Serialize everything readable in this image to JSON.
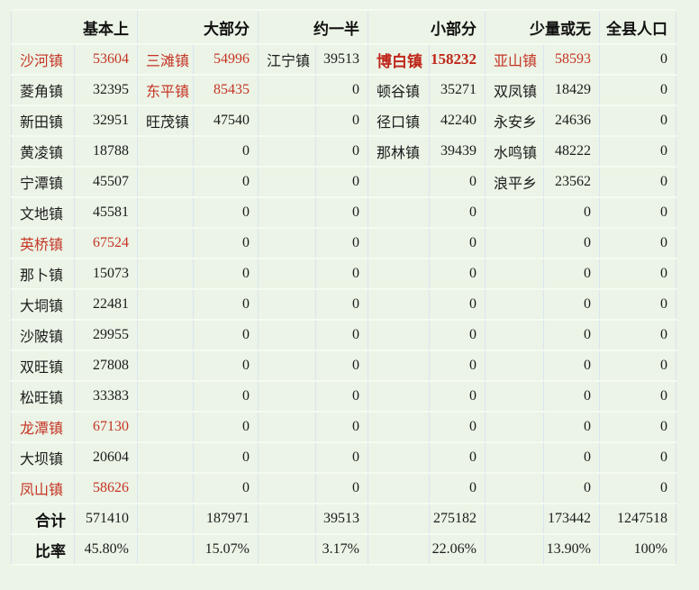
{
  "chart_data": {
    "type": "table",
    "headers": [
      "基本上",
      "大部分",
      "约一半",
      "小部分",
      "少量或无",
      "全县人口"
    ],
    "rows": [
      {
        "cells": [
          {
            "town": "沙河镇",
            "value": "53604",
            "style": "red"
          },
          {
            "town": "三滩镇",
            "value": "54996",
            "style": "red"
          },
          {
            "town": "江宁镇",
            "value": "39513",
            "style": ""
          },
          {
            "town": "博白镇",
            "value": "158232",
            "style": "red-bold"
          },
          {
            "town": "亚山镇",
            "value": "58593",
            "style": "red"
          }
        ],
        "county": "0"
      },
      {
        "cells": [
          {
            "town": "菱角镇",
            "value": "32395",
            "style": ""
          },
          {
            "town": "东平镇",
            "value": "85435",
            "style": "red"
          },
          {
            "town": "",
            "value": "0",
            "style": ""
          },
          {
            "town": "顿谷镇",
            "value": "35271",
            "style": ""
          },
          {
            "town": "双凤镇",
            "value": "18429",
            "style": ""
          }
        ],
        "county": "0"
      },
      {
        "cells": [
          {
            "town": "新田镇",
            "value": "32951",
            "style": ""
          },
          {
            "town": "旺茂镇",
            "value": "47540",
            "style": ""
          },
          {
            "town": "",
            "value": "0",
            "style": ""
          },
          {
            "town": "径口镇",
            "value": "42240",
            "style": ""
          },
          {
            "town": "永安乡",
            "value": "24636",
            "style": ""
          }
        ],
        "county": "0"
      },
      {
        "cells": [
          {
            "town": "黄凌镇",
            "value": "18788",
            "style": ""
          },
          {
            "town": "",
            "value": "0",
            "style": ""
          },
          {
            "town": "",
            "value": "0",
            "style": ""
          },
          {
            "town": "那林镇",
            "value": "39439",
            "style": ""
          },
          {
            "town": "水鸣镇",
            "value": "48222",
            "style": ""
          }
        ],
        "county": "0"
      },
      {
        "cells": [
          {
            "town": "宁潭镇",
            "value": "45507",
            "style": ""
          },
          {
            "town": "",
            "value": "0",
            "style": ""
          },
          {
            "town": "",
            "value": "0",
            "style": ""
          },
          {
            "town": "",
            "value": "0",
            "style": ""
          },
          {
            "town": "浪平乡",
            "value": "23562",
            "style": ""
          }
        ],
        "county": "0"
      },
      {
        "cells": [
          {
            "town": "文地镇",
            "value": "45581",
            "style": ""
          },
          {
            "town": "",
            "value": "0",
            "style": ""
          },
          {
            "town": "",
            "value": "0",
            "style": ""
          },
          {
            "town": "",
            "value": "0",
            "style": ""
          },
          {
            "town": "",
            "value": "0",
            "style": ""
          }
        ],
        "county": "0"
      },
      {
        "cells": [
          {
            "town": "英桥镇",
            "value": "67524",
            "style": "red"
          },
          {
            "town": "",
            "value": "0",
            "style": ""
          },
          {
            "town": "",
            "value": "0",
            "style": ""
          },
          {
            "town": "",
            "value": "0",
            "style": ""
          },
          {
            "town": "",
            "value": "0",
            "style": ""
          }
        ],
        "county": "0"
      },
      {
        "cells": [
          {
            "town": "那卜镇",
            "value": "15073",
            "style": ""
          },
          {
            "town": "",
            "value": "0",
            "style": ""
          },
          {
            "town": "",
            "value": "0",
            "style": ""
          },
          {
            "town": "",
            "value": "0",
            "style": ""
          },
          {
            "town": "",
            "value": "0",
            "style": ""
          }
        ],
        "county": "0"
      },
      {
        "cells": [
          {
            "town": "大垌镇",
            "value": "22481",
            "style": ""
          },
          {
            "town": "",
            "value": "0",
            "style": ""
          },
          {
            "town": "",
            "value": "0",
            "style": ""
          },
          {
            "town": "",
            "value": "0",
            "style": ""
          },
          {
            "town": "",
            "value": "0",
            "style": ""
          }
        ],
        "county": "0"
      },
      {
        "cells": [
          {
            "town": "沙陂镇",
            "value": "29955",
            "style": ""
          },
          {
            "town": "",
            "value": "0",
            "style": ""
          },
          {
            "town": "",
            "value": "0",
            "style": ""
          },
          {
            "town": "",
            "value": "0",
            "style": ""
          },
          {
            "town": "",
            "value": "0",
            "style": ""
          }
        ],
        "county": "0"
      },
      {
        "cells": [
          {
            "town": "双旺镇",
            "value": "27808",
            "style": ""
          },
          {
            "town": "",
            "value": "0",
            "style": ""
          },
          {
            "town": "",
            "value": "0",
            "style": ""
          },
          {
            "town": "",
            "value": "0",
            "style": ""
          },
          {
            "town": "",
            "value": "0",
            "style": ""
          }
        ],
        "county": "0"
      },
      {
        "cells": [
          {
            "town": "松旺镇",
            "value": "33383",
            "style": ""
          },
          {
            "town": "",
            "value": "0",
            "style": ""
          },
          {
            "town": "",
            "value": "0",
            "style": ""
          },
          {
            "town": "",
            "value": "0",
            "style": ""
          },
          {
            "town": "",
            "value": "0",
            "style": ""
          }
        ],
        "county": "0"
      },
      {
        "cells": [
          {
            "town": "龙潭镇",
            "value": "67130",
            "style": "red"
          },
          {
            "town": "",
            "value": "0",
            "style": ""
          },
          {
            "town": "",
            "value": "0",
            "style": ""
          },
          {
            "town": "",
            "value": "0",
            "style": ""
          },
          {
            "town": "",
            "value": "0",
            "style": ""
          }
        ],
        "county": "0"
      },
      {
        "cells": [
          {
            "town": "大坝镇",
            "value": "20604",
            "style": ""
          },
          {
            "town": "",
            "value": "0",
            "style": ""
          },
          {
            "town": "",
            "value": "0",
            "style": ""
          },
          {
            "town": "",
            "value": "0",
            "style": ""
          },
          {
            "town": "",
            "value": "0",
            "style": ""
          }
        ],
        "county": "0"
      },
      {
        "cells": [
          {
            "town": "凤山镇",
            "value": "58626",
            "style": "red"
          },
          {
            "town": "",
            "value": "0",
            "style": ""
          },
          {
            "town": "",
            "value": "0",
            "style": ""
          },
          {
            "town": "",
            "value": "0",
            "style": ""
          },
          {
            "town": "",
            "value": "0",
            "style": ""
          }
        ],
        "county": "0"
      }
    ],
    "total_row": {
      "label": "合计",
      "values": [
        "571410",
        "187971",
        "39513",
        "275182",
        "173442"
      ],
      "county": "1247518"
    },
    "ratio_row": {
      "label": "比率",
      "values": [
        "45.80%",
        "15.07%",
        "3.17%",
        "22.06%",
        "13.90%"
      ],
      "county": "100%"
    },
    "colors": {
      "background": "#ebf4e6",
      "grid_vertical": "#d8e4ef",
      "grid_horizontal": "#f4faf1",
      "text": "#1c1c1c",
      "red_highlight": "#c53425",
      "red_bold_highlight": "#bf271b"
    }
  }
}
